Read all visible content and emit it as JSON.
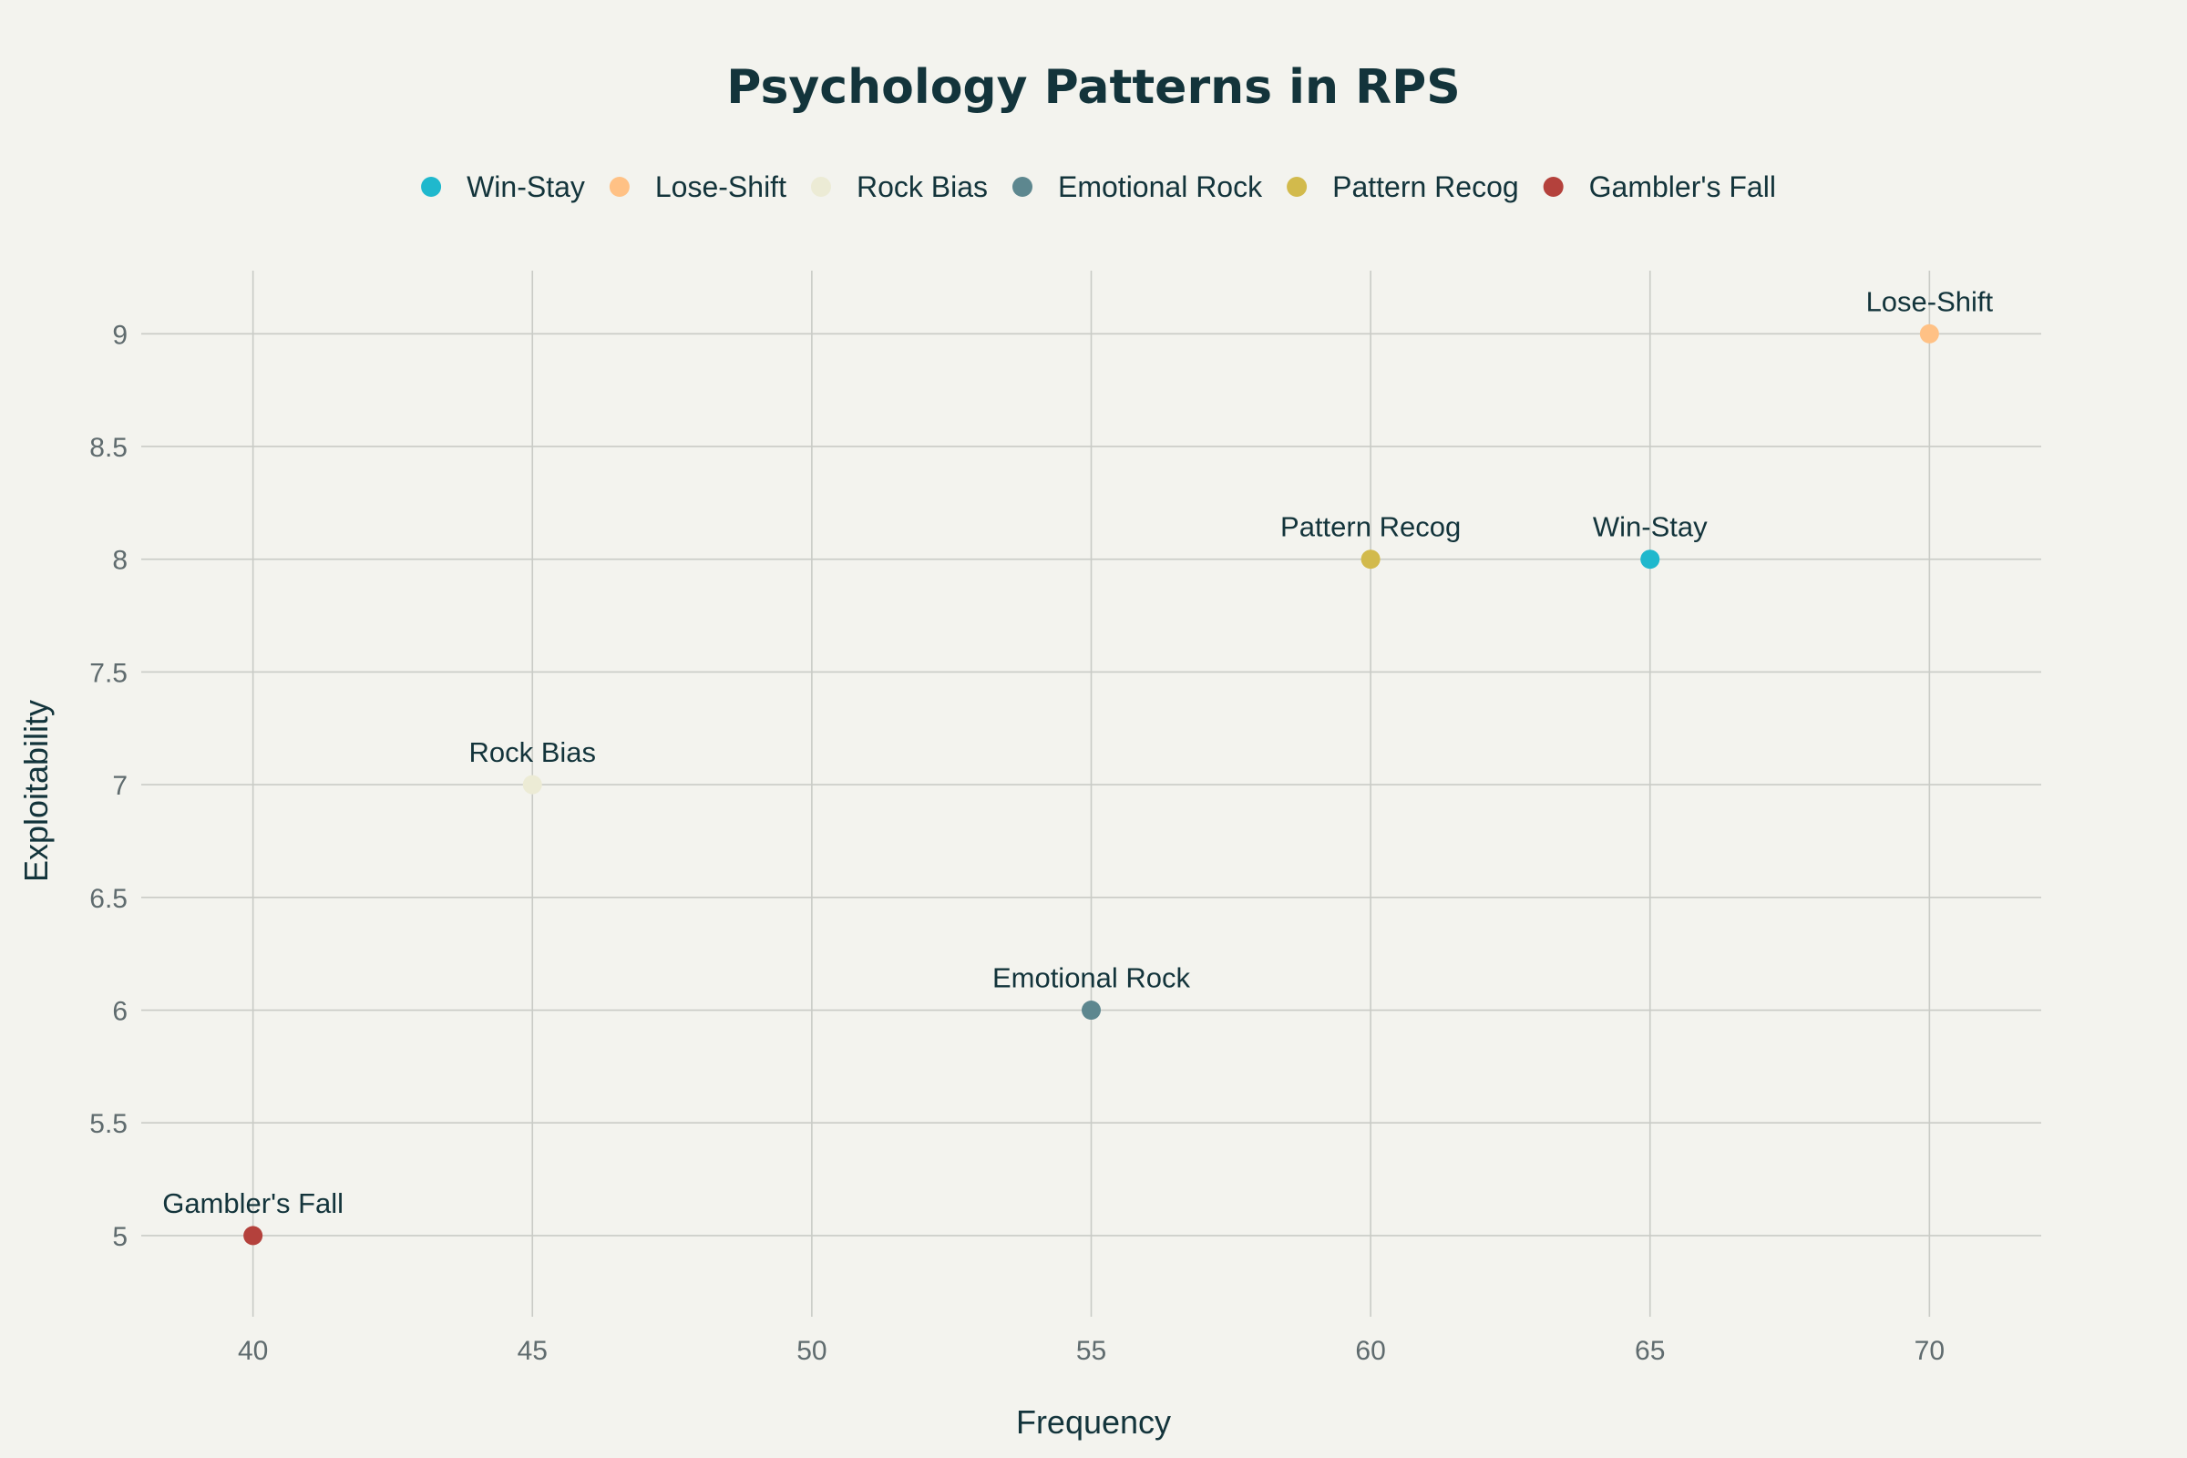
{
  "chart_data": {
    "type": "scatter",
    "title": "Psychology Patterns in RPS",
    "xlabel": "Frequency",
    "ylabel": "Exploitability",
    "xlim": [
      38,
      72
    ],
    "ylim": [
      4.64,
      9.28
    ],
    "xticks": [
      "40",
      "45",
      "50",
      "55",
      "60",
      "65",
      "70"
    ],
    "yticks": [
      "5",
      "5.5",
      "6",
      "6.5",
      "7",
      "7.5",
      "8",
      "8.5",
      "9"
    ],
    "grid": true,
    "legend_position": "top",
    "series": [
      {
        "name": "Win-Stay",
        "x": 65,
        "y": 8,
        "color": "#1fb8cd"
      },
      {
        "name": "Lose-Shift",
        "x": 70,
        "y": 9,
        "color": "#ffc185"
      },
      {
        "name": "Rock Bias",
        "x": 45,
        "y": 7,
        "color": "#ecebd5"
      },
      {
        "name": "Emotional Rock",
        "x": 55,
        "y": 6,
        "color": "#5d878f"
      },
      {
        "name": "Pattern Recog",
        "x": 60,
        "y": 8,
        "color": "#d2ba4c"
      },
      {
        "name": "Gambler's Fall",
        "x": 40,
        "y": 5,
        "color": "#b4413c"
      }
    ]
  }
}
